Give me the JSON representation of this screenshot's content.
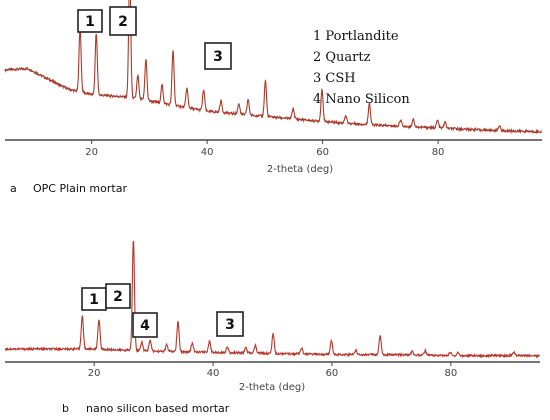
{
  "chart_data": [
    {
      "type": "line",
      "xlabel": "2-theta (deg)",
      "xlim": [
        5,
        98
      ],
      "xticks": [
        "20",
        "40",
        "60",
        "80"
      ],
      "caption_letter": "a",
      "caption": "OPC Plain mortar",
      "line_color": "#a83a2a",
      "legend": [
        "1 Portlandite",
        "2 Quartz",
        "3 CSH",
        "4 Nano Silicon"
      ],
      "markers": [
        {
          "label": "1",
          "x": 20
        },
        {
          "label": "2",
          "x": 26.5
        },
        {
          "label": "3",
          "x": 42
        }
      ],
      "series": [
        {
          "baseline": [
            [
              5,
              0.52
            ],
            [
              9,
              0.53
            ],
            [
              12,
              0.46
            ],
            [
              16,
              0.37
            ],
            [
              20,
              0.33
            ],
            [
              26,
              0.31
            ],
            [
              30,
              0.28
            ],
            [
              35,
              0.24
            ],
            [
              40,
              0.2
            ],
            [
              50,
              0.16
            ],
            [
              60,
              0.12
            ],
            [
              70,
              0.09
            ],
            [
              80,
              0.07
            ],
            [
              90,
              0.05
            ],
            [
              98,
              0.04
            ]
          ],
          "peaks": [
            [
              18.0,
              0.5
            ],
            [
              20.8,
              0.48
            ],
            [
              26.6,
              1.0
            ],
            [
              28.0,
              0.18
            ],
            [
              29.4,
              0.32
            ],
            [
              32.2,
              0.14
            ],
            [
              34.1,
              0.42
            ],
            [
              36.5,
              0.15
            ],
            [
              39.4,
              0.16
            ],
            [
              42.4,
              0.09
            ],
            [
              45.5,
              0.08
            ],
            [
              47.1,
              0.12
            ],
            [
              50.1,
              0.28
            ],
            [
              54.9,
              0.08
            ],
            [
              59.9,
              0.25
            ],
            [
              64.0,
              0.06
            ],
            [
              68.1,
              0.17
            ],
            [
              73.5,
              0.05
            ],
            [
              75.7,
              0.06
            ],
            [
              79.9,
              0.06
            ],
            [
              81.2,
              0.05
            ],
            [
              90.6,
              0.04
            ]
          ]
        }
      ]
    },
    {
      "type": "line",
      "xlabel": "2-theta (deg)",
      "xlim": [
        5,
        95
      ],
      "xticks": [
        "20",
        "40",
        "60",
        "80"
      ],
      "caption_letter": "b",
      "caption": "nano silicon based mortar",
      "line_color": "#b8352a",
      "markers": [
        {
          "label": "1",
          "x": 19
        },
        {
          "label": "2",
          "x": 23
        },
        {
          "label": "4",
          "x": 28
        },
        {
          "label": "3",
          "x": 42
        }
      ],
      "series": [
        {
          "baseline": [
            [
              5,
              0.09
            ],
            [
              10,
              0.09
            ],
            [
              15,
              0.09
            ],
            [
              20,
              0.09
            ],
            [
              25,
              0.08
            ],
            [
              30,
              0.07
            ],
            [
              40,
              0.06
            ],
            [
              50,
              0.05
            ],
            [
              60,
              0.04
            ],
            [
              70,
              0.04
            ],
            [
              80,
              0.03
            ],
            [
              95,
              0.03
            ]
          ],
          "peaks": [
            [
              18.0,
              0.3
            ],
            [
              20.8,
              0.27
            ],
            [
              26.6,
              1.0
            ],
            [
              28.0,
              0.08
            ],
            [
              29.4,
              0.1
            ],
            [
              32.2,
              0.06
            ],
            [
              34.1,
              0.27
            ],
            [
              36.5,
              0.08
            ],
            [
              39.4,
              0.1
            ],
            [
              42.4,
              0.05
            ],
            [
              45.5,
              0.05
            ],
            [
              47.1,
              0.07
            ],
            [
              50.1,
              0.18
            ],
            [
              54.9,
              0.05
            ],
            [
              59.9,
              0.13
            ],
            [
              64.0,
              0.04
            ],
            [
              68.1,
              0.17
            ],
            [
              73.5,
              0.03
            ],
            [
              75.7,
              0.04
            ],
            [
              79.9,
              0.03
            ],
            [
              81.2,
              0.03
            ],
            [
              90.6,
              0.03
            ]
          ]
        }
      ]
    }
  ]
}
